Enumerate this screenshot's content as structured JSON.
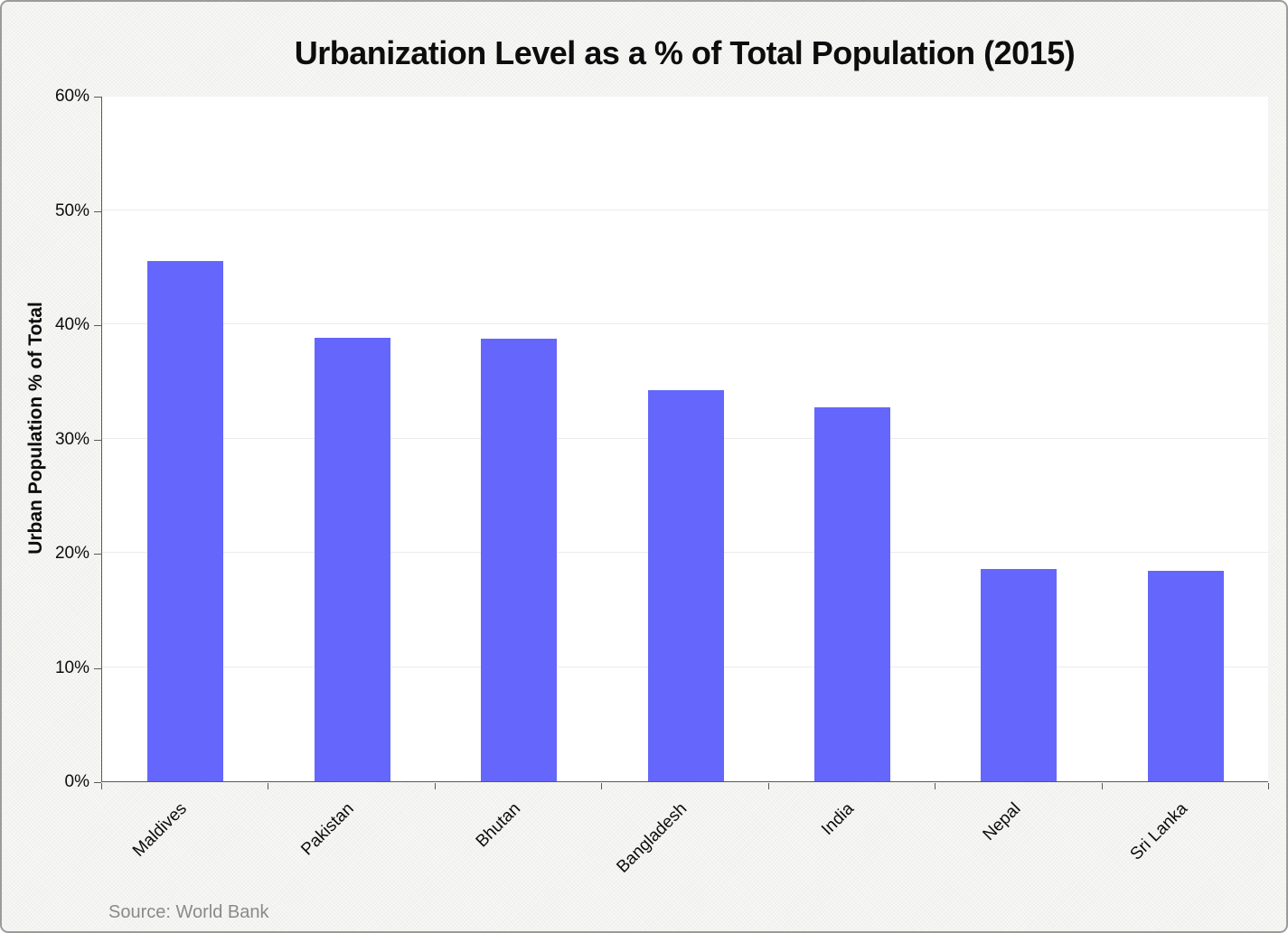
{
  "chart_data": {
    "type": "bar",
    "title": "Urbanization Level as a % of Total Population (2015)",
    "xlabel": "",
    "ylabel": "Urban Population % of Total",
    "categories": [
      "Maldives",
      "Pakistan",
      "Bhutan",
      "Bangladesh",
      "India",
      "Nepal",
      "Sri Lanka"
    ],
    "values": [
      45.5,
      38.8,
      38.7,
      34.2,
      32.7,
      18.6,
      18.4
    ],
    "ylim": [
      0,
      60
    ],
    "ytick_step": 10,
    "ytick_labels": [
      "0%",
      "10%",
      "20%",
      "30%",
      "40%",
      "50%",
      "60%"
    ],
    "grid": true,
    "legend": "none",
    "bar_color": "#6566fb",
    "axis_color": "#595959",
    "gridline_color": "#ebebeb",
    "source": "Source: World Bank"
  }
}
